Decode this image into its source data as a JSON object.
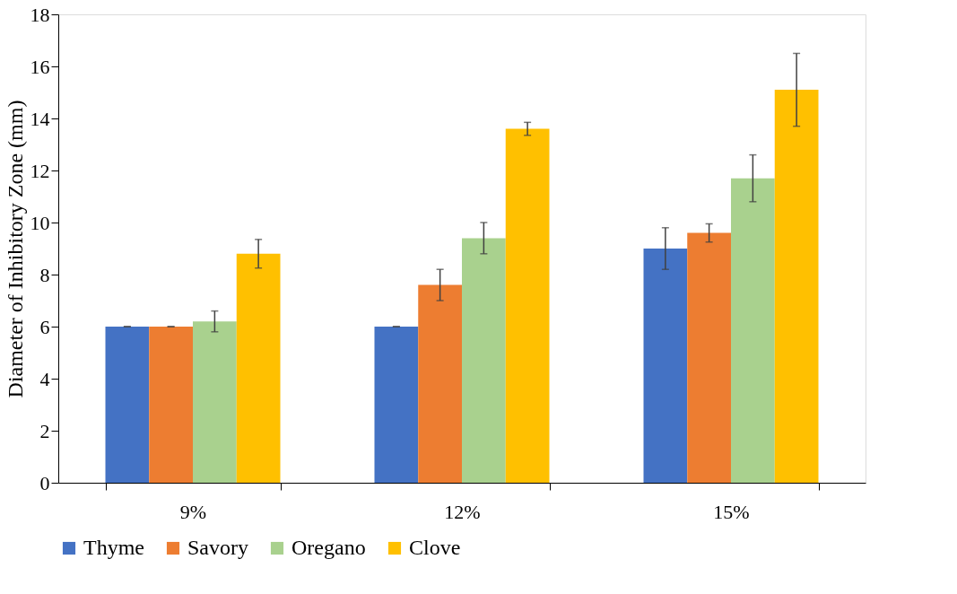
{
  "chart_data": {
    "type": "bar",
    "ylabel": "Diameter of Inhibitory Zone (mm)",
    "categories": [
      "9%",
      "12%",
      "15%"
    ],
    "series": [
      {
        "name": "Thyme",
        "color": "#4472c4",
        "values": [
          6.0,
          6.0,
          9.0
        ],
        "errors": [
          0,
          0,
          0.8
        ]
      },
      {
        "name": "Savory",
        "color": "#ed7d31",
        "values": [
          6.0,
          7.6,
          9.6
        ],
        "errors": [
          0,
          0.6,
          0.35
        ]
      },
      {
        "name": "Oregano",
        "color": "#a9d18e",
        "values": [
          6.2,
          9.4,
          11.7
        ],
        "errors": [
          0.4,
          0.6,
          0.9
        ]
      },
      {
        "name": "Clove",
        "color": "#ffc000",
        "values": [
          8.8,
          13.6,
          15.1
        ],
        "errors": [
          0.55,
          0.25,
          1.4
        ]
      }
    ],
    "ylim": [
      0,
      18
    ],
    "yticks": [
      0,
      2,
      4,
      6,
      8,
      10,
      12,
      14,
      16,
      18
    ],
    "grid": false,
    "legend": "bottom"
  }
}
